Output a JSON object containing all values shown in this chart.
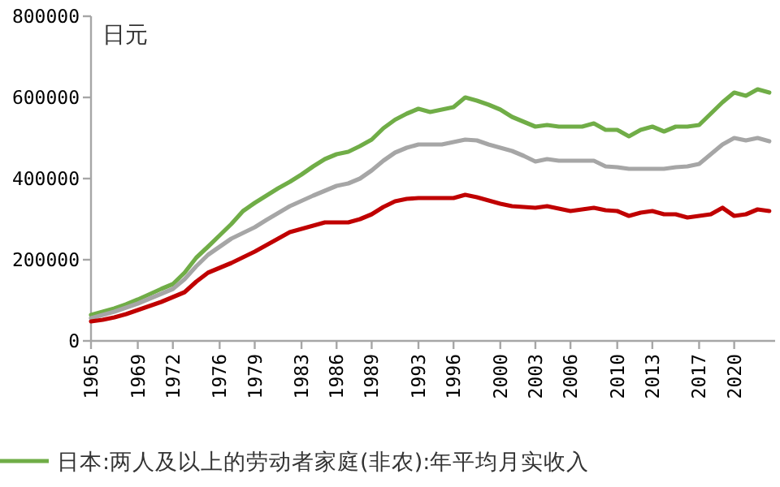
{
  "chart_data": {
    "type": "line",
    "ylabel": "日元",
    "legend": "bottom",
    "marker": "none",
    "line_style": "solid",
    "grid": false,
    "x": [
      1965,
      1966,
      1967,
      1968,
      1969,
      1970,
      1971,
      1972,
      1973,
      1974,
      1975,
      1976,
      1977,
      1978,
      1979,
      1980,
      1981,
      1982,
      1983,
      1984,
      1985,
      1986,
      1987,
      1988,
      1989,
      1990,
      1991,
      1992,
      1993,
      1994,
      1995,
      1996,
      1997,
      1998,
      1999,
      2000,
      2001,
      2002,
      2003,
      2004,
      2005,
      2006,
      2007,
      2008,
      2009,
      2010,
      2011,
      2012,
      2013,
      2014,
      2015,
      2016,
      2017,
      2018,
      2019,
      2020,
      2021,
      2022,
      2023
    ],
    "xlim": [
      1965,
      2023.5
    ],
    "xticks": [
      1965,
      1969,
      1972,
      1976,
      1979,
      1983,
      1986,
      1989,
      1993,
      1996,
      2000,
      2003,
      2006,
      2010,
      2013,
      2017,
      2020
    ],
    "ylim": [
      0,
      800000
    ],
    "yticks": [
      0,
      200000,
      400000,
      600000,
      800000
    ],
    "series": [
      {
        "name": "日本:两人及以上的劳动者家庭(非农):年平均月实收入",
        "color": "#70ad47",
        "values": [
          64000,
          72000,
          80000,
          90000,
          102000,
          115000,
          128000,
          140000,
          168000,
          205000,
          232000,
          260000,
          288000,
          320000,
          340000,
          358000,
          376000,
          392000,
          410000,
          430000,
          448000,
          460000,
          466000,
          480000,
          496000,
          524000,
          545000,
          560000,
          572000,
          564000,
          570000,
          576000,
          600000,
          592000,
          582000,
          570000,
          552000,
          540000,
          528000,
          532000,
          528000,
          528000,
          528000,
          536000,
          520000,
          520000,
          504000,
          520000,
          528000,
          516000,
          528000,
          528000,
          532000,
          560000,
          588000,
          612000,
          604000,
          620000,
          612000
        ]
      },
      {
        "color": "#a6a6a6",
        "values": [
          56000,
          64000,
          72000,
          82000,
          92000,
          104000,
          116000,
          128000,
          152000,
          184000,
          212000,
          232000,
          252000,
          266000,
          280000,
          298000,
          315000,
          332000,
          345000,
          358000,
          370000,
          382000,
          388000,
          400000,
          420000,
          444000,
          464000,
          476000,
          484000,
          484000,
          484000,
          490000,
          496000,
          494000,
          484000,
          476000,
          468000,
          456000,
          442000,
          448000,
          444000,
          444000,
          444000,
          444000,
          430000,
          428000,
          424000,
          424000,
          424000,
          424000,
          428000,
          430000,
          436000,
          460000,
          484000,
          500000,
          494000,
          500000,
          492000
        ]
      },
      {
        "color": "#c00000",
        "values": [
          48000,
          52000,
          58000,
          66000,
          76000,
          86000,
          96000,
          108000,
          120000,
          146000,
          168000,
          180000,
          192000,
          206000,
          220000,
          236000,
          252000,
          268000,
          276000,
          284000,
          292000,
          292000,
          292000,
          300000,
          312000,
          330000,
          344000,
          350000,
          352000,
          352000,
          352000,
          352000,
          360000,
          354000,
          346000,
          338000,
          332000,
          330000,
          328000,
          332000,
          326000,
          320000,
          324000,
          328000,
          322000,
          320000,
          308000,
          316000,
          320000,
          312000,
          312000,
          304000,
          308000,
          312000,
          328000,
          308000,
          312000,
          324000,
          320000
        ]
      }
    ]
  }
}
